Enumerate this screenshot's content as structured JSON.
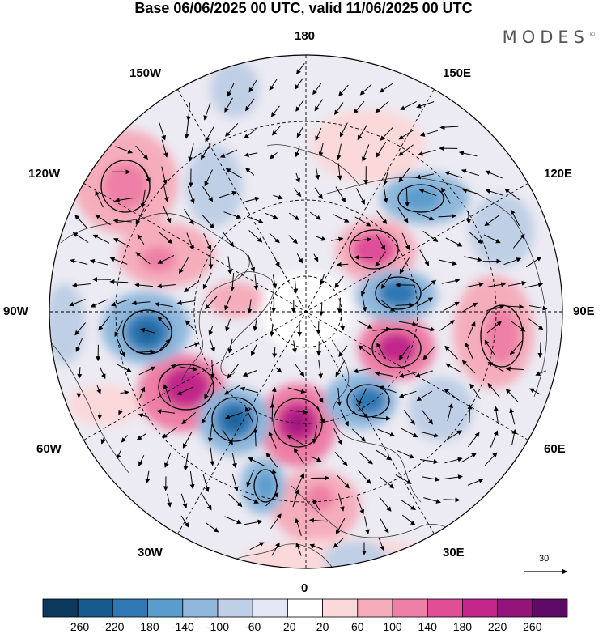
{
  "title": "Base 06/06/2025 00 UTC, valid 11/06/2025 00 UTC",
  "brand": "MODES",
  "brand_mark": "©",
  "longitude_labels": {
    "lon_180": "180",
    "lon_150e": "150E",
    "lon_120e": "120E",
    "lon_90e": "90E",
    "lon_60e": "60E",
    "lon_30e": "30E",
    "lon_0": "0",
    "lon_30w": "30W",
    "lon_60w": "60W",
    "lon_90w": "90W",
    "lon_120w": "120W",
    "lon_150w": "150W"
  },
  "reference_vector_label": "30",
  "colorbar": {
    "labels": [
      "-260",
      "-220",
      "-180",
      "-140",
      "-100",
      "-60",
      "-20",
      "20",
      "60",
      "100",
      "140",
      "180",
      "220",
      "260"
    ],
    "colors": [
      "#0b3a5e",
      "#175a8e",
      "#2f78b4",
      "#5a9ccc",
      "#8fb8dc",
      "#bfcfe6",
      "#e4e6f3",
      "#ffffff",
      "#fbd8d9",
      "#f5adbc",
      "#ee7fa6",
      "#e04e98",
      "#c2268a",
      "#95137a",
      "#5e0a66"
    ]
  },
  "map": {
    "projection": "north-polar-stereographic",
    "graticule": "dashed",
    "coastlines": true,
    "wind_vectors": true,
    "anomaly_centers": [
      {
        "lon": "165E",
        "value_band": "60"
      },
      {
        "lon": "135E",
        "value_band": "-140"
      },
      {
        "lon": "110E",
        "value_band": "180"
      },
      {
        "lon": "100E",
        "value_band": "-180"
      },
      {
        "lon": "75E",
        "value_band": "220"
      },
      {
        "lon": "40E",
        "value_band": "-180"
      },
      {
        "lon": "75E",
        "value_band": "100"
      },
      {
        "lon": "55E",
        "value_band": "-60"
      },
      {
        "lon": "15W",
        "value_band": "260"
      },
      {
        "lon": "35W",
        "value_band": "-220"
      },
      {
        "lon": "55W",
        "value_band": "220"
      },
      {
        "lon": "70W",
        "value_band": "-180"
      },
      {
        "lon": "10W",
        "value_band": "-140"
      },
      {
        "lon": "5E",
        "value_band": "140"
      },
      {
        "lon": "110W",
        "value_band": "100"
      },
      {
        "lon": "125W",
        "value_band": "140"
      },
      {
        "lon": "170W",
        "value_band": "-100"
      },
      {
        "lon": "150W",
        "value_band": "-100"
      }
    ]
  }
}
